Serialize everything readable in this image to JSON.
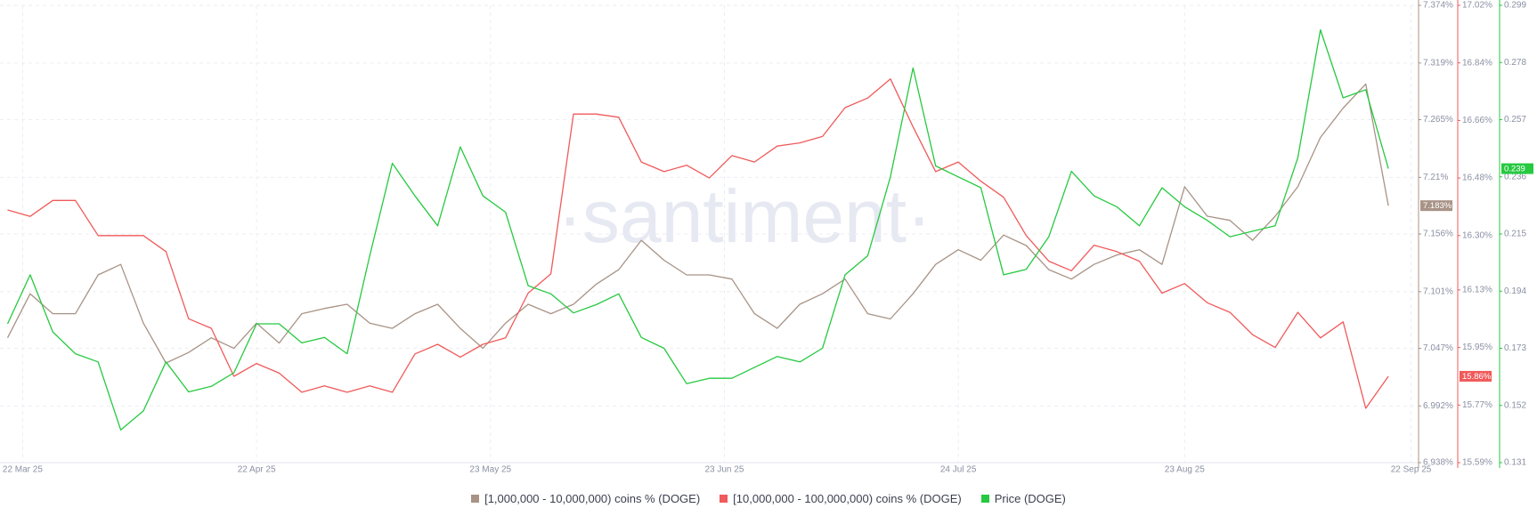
{
  "chart_data": {
    "type": "line",
    "watermark": "·santiment·",
    "grid": true,
    "x": [
      "2025-03-20",
      "2025-03-23",
      "2025-03-26",
      "2025-03-29",
      "2025-04-01",
      "2025-04-04",
      "2025-04-07",
      "2025-04-10",
      "2025-04-13",
      "2025-04-16",
      "2025-04-19",
      "2025-04-22",
      "2025-04-25",
      "2025-04-28",
      "2025-05-01",
      "2025-05-04",
      "2025-05-07",
      "2025-05-10",
      "2025-05-13",
      "2025-05-16",
      "2025-05-19",
      "2025-05-22",
      "2025-05-25",
      "2025-05-28",
      "2025-05-31",
      "2025-06-03",
      "2025-06-06",
      "2025-06-09",
      "2025-06-12",
      "2025-06-15",
      "2025-06-18",
      "2025-06-21",
      "2025-06-24",
      "2025-06-27",
      "2025-06-30",
      "2025-07-03",
      "2025-07-06",
      "2025-07-09",
      "2025-07-12",
      "2025-07-15",
      "2025-07-18",
      "2025-07-21",
      "2025-07-24",
      "2025-07-27",
      "2025-07-30",
      "2025-08-02",
      "2025-08-05",
      "2025-08-08",
      "2025-08-11",
      "2025-08-14",
      "2025-08-17",
      "2025-08-20",
      "2025-08-23",
      "2025-08-26",
      "2025-08-29",
      "2025-09-01",
      "2025-09-04",
      "2025-09-07",
      "2025-09-10",
      "2025-09-13",
      "2025-09-16",
      "2025-09-19"
    ],
    "xlim": [
      "2025-03-19",
      "2025-09-23"
    ],
    "xticks": [
      {
        "value": "2025-03-22",
        "label": "22 Mar 25"
      },
      {
        "value": "2025-04-22",
        "label": "22 Apr 25"
      },
      {
        "value": "2025-05-23",
        "label": "23 May 25"
      },
      {
        "value": "2025-06-23",
        "label": "23 Jun 25"
      },
      {
        "value": "2025-07-24",
        "label": "24 Jul 25"
      },
      {
        "value": "2025-08-23",
        "label": "23 Aug 25"
      },
      {
        "value": "2025-09-22",
        "label": "22 Sep 25"
      }
    ],
    "ylim": [
      6.938,
      7.374
    ],
    "yticks": [
      {
        "value": 6.938,
        "label": "6.938%"
      },
      {
        "value": 6.992,
        "label": "6.992%"
      },
      {
        "value": 7.047,
        "label": "7.047%"
      },
      {
        "value": 7.101,
        "label": "7.101%"
      },
      {
        "value": 7.156,
        "label": "7.156%"
      },
      {
        "value": 7.21,
        "label": "7.21%"
      },
      {
        "value": 7.265,
        "label": "7.265%"
      },
      {
        "value": 7.319,
        "label": "7.319%"
      },
      {
        "value": 7.374,
        "label": "7.374%"
      }
    ],
    "y2lim": [
      15.59,
      17.02
    ],
    "y2ticks": [
      {
        "value": 15.59,
        "label": "15.59%"
      },
      {
        "value": 15.77,
        "label": "15.77%"
      },
      {
        "value": 15.95,
        "label": "15.95%"
      },
      {
        "value": 16.13,
        "label": "16.13%"
      },
      {
        "value": 16.3,
        "label": "16.30%"
      },
      {
        "value": 16.48,
        "label": "16.48%"
      },
      {
        "value": 16.66,
        "label": "16.66%"
      },
      {
        "value": 16.84,
        "label": "16.84%"
      },
      {
        "value": 17.02,
        "label": "17.02%"
      }
    ],
    "y3lim": [
      0.131,
      0.299
    ],
    "y3ticks": [
      0.131,
      0.152,
      0.173,
      0.194,
      0.215,
      0.236,
      0.257,
      0.278,
      0.299
    ],
    "series": [
      {
        "name": "[1,000,000 - 10,000,000) coins % (DOGE)",
        "color": "#a89386",
        "axis": "y",
        "last_label": "7.183%",
        "values": [
          7.057,
          7.099,
          7.08,
          7.08,
          7.117,
          7.127,
          7.071,
          7.033,
          7.043,
          7.057,
          7.047,
          7.071,
          7.052,
          7.08,
          7.085,
          7.089,
          7.071,
          7.066,
          7.08,
          7.089,
          7.066,
          7.047,
          7.071,
          7.089,
          7.08,
          7.089,
          7.108,
          7.122,
          7.15,
          7.131,
          7.117,
          7.117,
          7.113,
          7.08,
          7.066,
          7.089,
          7.099,
          7.113,
          7.08,
          7.075,
          7.099,
          7.127,
          7.141,
          7.131,
          7.155,
          7.145,
          7.122,
          7.113,
          7.127,
          7.136,
          7.141,
          7.127,
          7.201,
          7.173,
          7.169,
          7.15,
          7.173,
          7.201,
          7.248,
          7.276,
          7.299,
          7.183
        ]
      },
      {
        "name": "[10,000,000 - 100,000,000) coins % (DOGE)",
        "color": "#f05a5a",
        "axis": "y2",
        "last_label": "15.86%",
        "values": [
          16.38,
          16.36,
          16.41,
          16.41,
          16.3,
          16.3,
          16.3,
          16.25,
          16.04,
          16.01,
          15.86,
          15.9,
          15.87,
          15.81,
          15.83,
          15.81,
          15.83,
          15.81,
          15.93,
          15.96,
          15.92,
          15.96,
          15.98,
          16.12,
          16.18,
          16.68,
          16.68,
          16.67,
          16.53,
          16.5,
          16.52,
          16.48,
          16.55,
          16.53,
          16.58,
          16.59,
          16.61,
          16.7,
          16.73,
          16.79,
          16.64,
          16.5,
          16.53,
          16.47,
          16.42,
          16.3,
          16.22,
          16.19,
          16.27,
          16.25,
          16.22,
          16.12,
          16.15,
          16.09,
          16.06,
          15.99,
          15.95,
          16.06,
          15.98,
          16.03,
          15.76,
          15.86
        ]
      },
      {
        "name": "Price (DOGE)",
        "color": "#26c940",
        "axis": "y3",
        "last_label": "0.239",
        "values": [
          0.182,
          0.2,
          0.179,
          0.171,
          0.168,
          0.143,
          0.15,
          0.168,
          0.157,
          0.159,
          0.164,
          0.182,
          0.182,
          0.175,
          0.177,
          0.171,
          0.207,
          0.241,
          0.229,
          0.218,
          0.247,
          0.229,
          0.223,
          0.196,
          0.193,
          0.186,
          0.189,
          0.193,
          0.177,
          0.173,
          0.16,
          0.162,
          0.162,
          0.166,
          0.17,
          0.168,
          0.173,
          0.2,
          0.207,
          0.236,
          0.276,
          0.24,
          0.236,
          0.232,
          0.2,
          0.202,
          0.214,
          0.238,
          0.229,
          0.225,
          0.218,
          0.232,
          0.225,
          0.22,
          0.214,
          0.216,
          0.218,
          0.243,
          0.29,
          0.265,
          0.268,
          0.239
        ]
      }
    ]
  }
}
